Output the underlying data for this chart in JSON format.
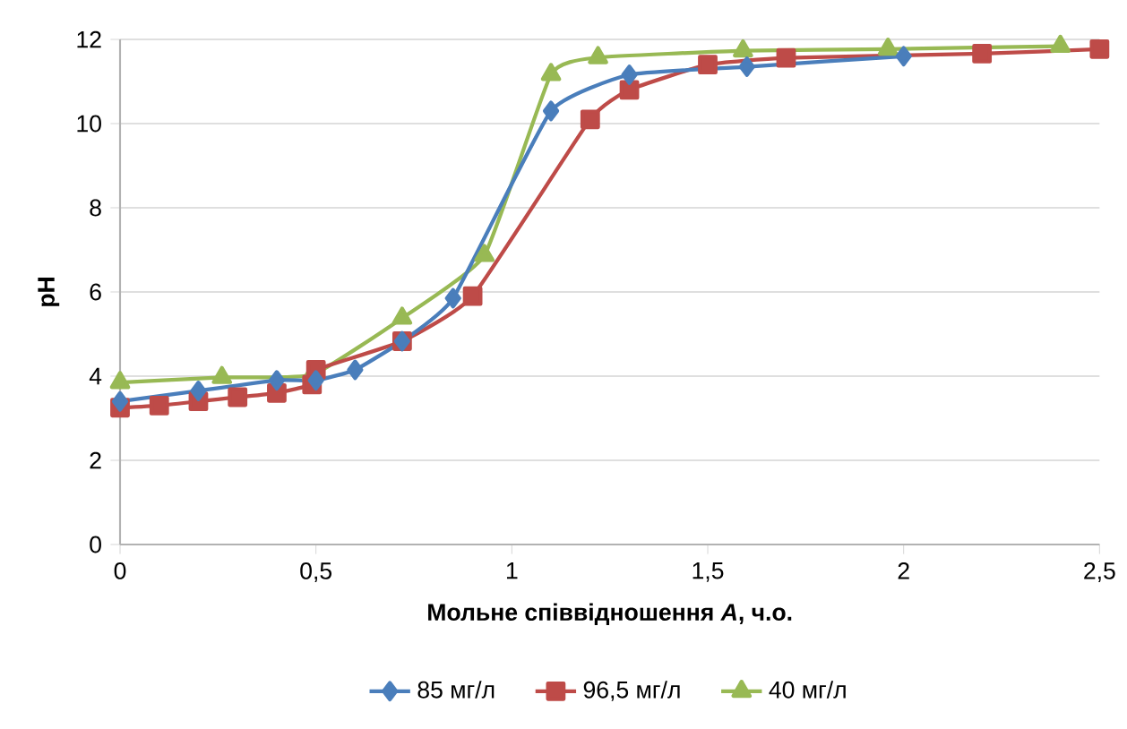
{
  "chart_data": {
    "type": "line",
    "xlabel": "Мольне співвідношення *A*, ч.о.",
    "ylabel": "pH",
    "xlim": [
      0,
      2.5
    ],
    "ylim": [
      0,
      12
    ],
    "xticks": [
      0,
      {
        "value": 0.5,
        "label": "0,5"
      },
      1,
      {
        "value": 1.5,
        "label": "1,5"
      },
      2,
      {
        "value": 2.5,
        "label": "2,5"
      }
    ],
    "yticks": [
      0,
      2,
      4,
      6,
      8,
      10,
      12
    ],
    "grid": "y",
    "legend": "bottom",
    "line_style": "solid",
    "series": [
      {
        "name": "85 мг/л",
        "color": "#4a7ebb",
        "marker": "diamond",
        "x": [
          0,
          0.2,
          0.4,
          0.5,
          0.6,
          0.72,
          0.85,
          1.1,
          1.3,
          1.6,
          2.0
        ],
        "values": [
          3.4,
          3.65,
          3.9,
          3.9,
          4.15,
          4.83,
          5.85,
          10.3,
          11.16,
          11.35,
          11.6
        ]
      },
      {
        "name": "96,5 мг/л",
        "color": "#be4b48",
        "marker": "square",
        "x": [
          0,
          0.1,
          0.2,
          0.3,
          0.4,
          0.49,
          0.5,
          0.72,
          0.9,
          1.2,
          1.3,
          1.5,
          1.7,
          2.2,
          2.5
        ],
        "values": [
          3.25,
          3.3,
          3.4,
          3.5,
          3.6,
          3.8,
          4.15,
          4.83,
          5.9,
          10.1,
          10.8,
          11.4,
          11.56,
          11.66,
          11.77
        ]
      },
      {
        "name": "40 мг/л",
        "color": "#98b954",
        "marker": "triangle",
        "x": [
          0,
          0.26,
          0.49,
          0.72,
          0.93,
          1.1,
          1.22,
          1.59,
          1.96,
          2.4
        ],
        "values": [
          3.85,
          3.97,
          4.03,
          5.38,
          6.87,
          11.17,
          11.57,
          11.73,
          11.77,
          11.84
        ]
      }
    ]
  }
}
